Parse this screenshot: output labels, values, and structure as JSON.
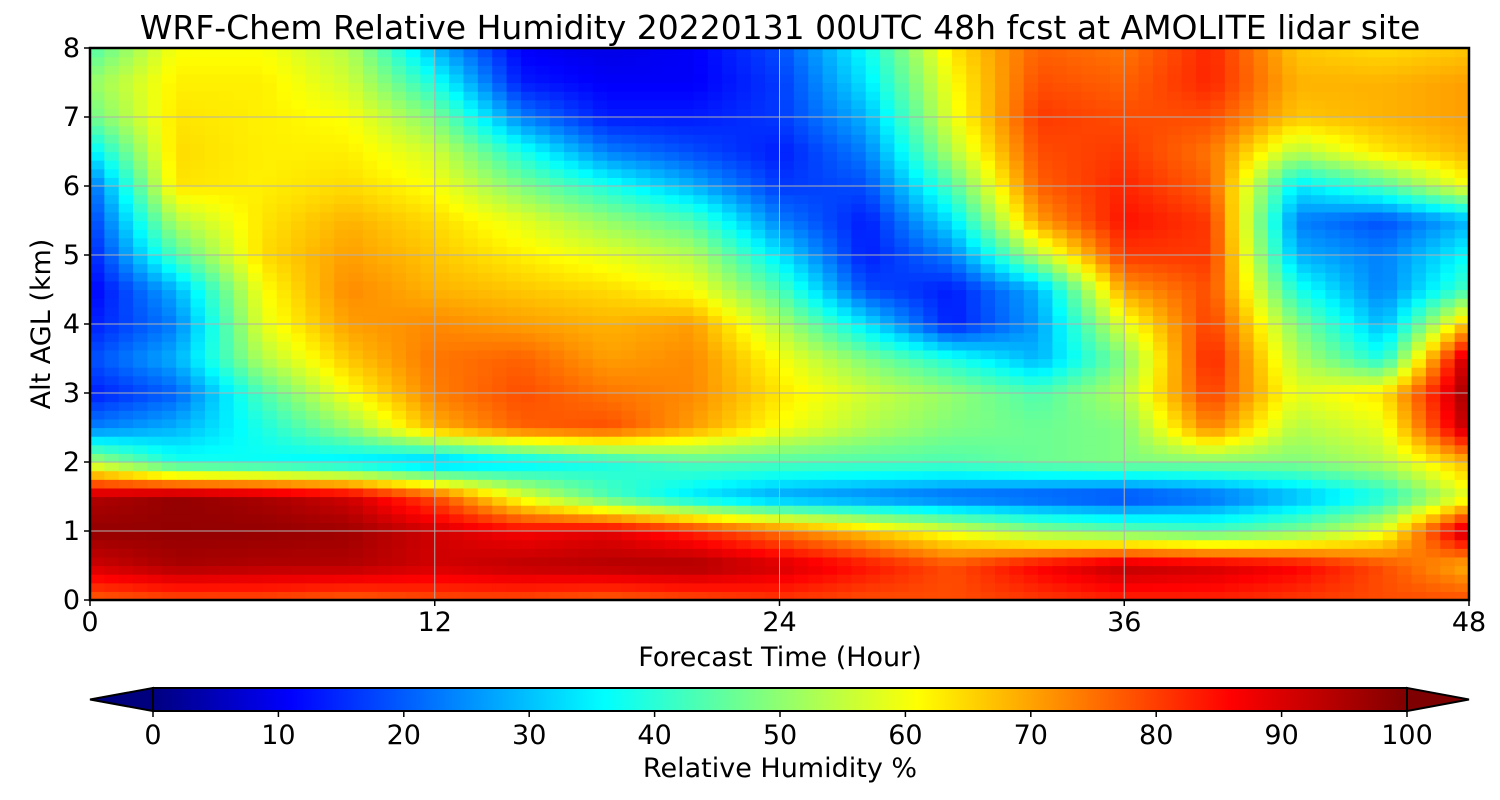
{
  "chart_data": {
    "type": "heatmap",
    "title": "WRF-Chem Relative Humidity 20220131 00UTC 48h fcst at AMOLITE lidar site",
    "xlabel": "Forecast Time (Hour)",
    "ylabel": "Alt AGL (km)",
    "xlim": [
      0,
      48
    ],
    "ylim": [
      0,
      8
    ],
    "xticks": [
      0,
      12,
      24,
      36,
      48
    ],
    "yticks": [
      0,
      1,
      2,
      3,
      4,
      5,
      6,
      7,
      8
    ],
    "grid": true,
    "colormap": "jet",
    "colorbar": {
      "label": "Relative Humidity %",
      "min": 0,
      "max": 100,
      "ticks": [
        0,
        10,
        20,
        30,
        40,
        50,
        60,
        70,
        80,
        90,
        100
      ],
      "extend": "both",
      "orientation": "horizontal",
      "placement": "bottom"
    },
    "x": [
      0,
      3,
      6,
      9,
      12,
      15,
      18,
      21,
      24,
      27,
      30,
      33,
      36,
      39,
      42,
      45,
      48
    ],
    "y": [
      0,
      0.5,
      1,
      1.5,
      2,
      2.5,
      3,
      3.5,
      4,
      4.5,
      5,
      5.5,
      6,
      6.5,
      7,
      7.5,
      8
    ],
    "z": [
      [
        78,
        80,
        80,
        78,
        80,
        80,
        78,
        80,
        82,
        80,
        80,
        82,
        84,
        84,
        82,
        80,
        80
      ],
      [
        92,
        96,
        95,
        95,
        92,
        94,
        95,
        96,
        92,
        86,
        80,
        88,
        94,
        92,
        88,
        80,
        70
      ],
      [
        98,
        98,
        98,
        97,
        92,
        88,
        90,
        84,
        76,
        68,
        60,
        52,
        48,
        45,
        50,
        60,
        95
      ],
      [
        95,
        98,
        96,
        92,
        80,
        60,
        45,
        35,
        28,
        25,
        22,
        20,
        18,
        22,
        30,
        40,
        60
      ],
      [
        55,
        40,
        38,
        35,
        30,
        35,
        40,
        45,
        45,
        45,
        45,
        48,
        50,
        50,
        50,
        55,
        70
      ],
      [
        25,
        30,
        40,
        52,
        70,
        78,
        80,
        72,
        62,
        55,
        50,
        48,
        50,
        75,
        55,
        60,
        95
      ],
      [
        15,
        22,
        45,
        62,
        75,
        80,
        76,
        74,
        65,
        58,
        52,
        45,
        55,
        82,
        60,
        65,
        98
      ],
      [
        20,
        30,
        55,
        68,
        76,
        78,
        72,
        74,
        62,
        50,
        40,
        30,
        50,
        85,
        55,
        40,
        95
      ],
      [
        15,
        25,
        60,
        72,
        74,
        72,
        70,
        72,
        55,
        35,
        15,
        28,
        60,
        82,
        50,
        30,
        70
      ],
      [
        12,
        30,
        62,
        74,
        70,
        68,
        66,
        62,
        45,
        20,
        15,
        30,
        72,
        80,
        40,
        25,
        45
      ],
      [
        15,
        45,
        66,
        72,
        68,
        64,
        60,
        55,
        35,
        15,
        25,
        55,
        82,
        82,
        30,
        25,
        38
      ],
      [
        18,
        55,
        65,
        70,
        66,
        60,
        52,
        45,
        25,
        15,
        35,
        72,
        86,
        82,
        25,
        20,
        30
      ],
      [
        22,
        65,
        64,
        66,
        62,
        50,
        40,
        30,
        18,
        20,
        45,
        78,
        84,
        78,
        35,
        45,
        62
      ],
      [
        35,
        66,
        64,
        64,
        58,
        40,
        25,
        20,
        15,
        25,
        55,
        80,
        82,
        76,
        55,
        65,
        70
      ],
      [
        48,
        65,
        64,
        62,
        50,
        25,
        15,
        15,
        18,
        30,
        60,
        82,
        80,
        80,
        68,
        70,
        72
      ],
      [
        52,
        64,
        64,
        58,
        40,
        15,
        12,
        12,
        18,
        35,
        62,
        80,
        78,
        84,
        70,
        70,
        72
      ],
      [
        45,
        62,
        62,
        55,
        30,
        12,
        10,
        12,
        20,
        38,
        65,
        78,
        76,
        84,
        68,
        66,
        68
      ]
    ]
  }
}
